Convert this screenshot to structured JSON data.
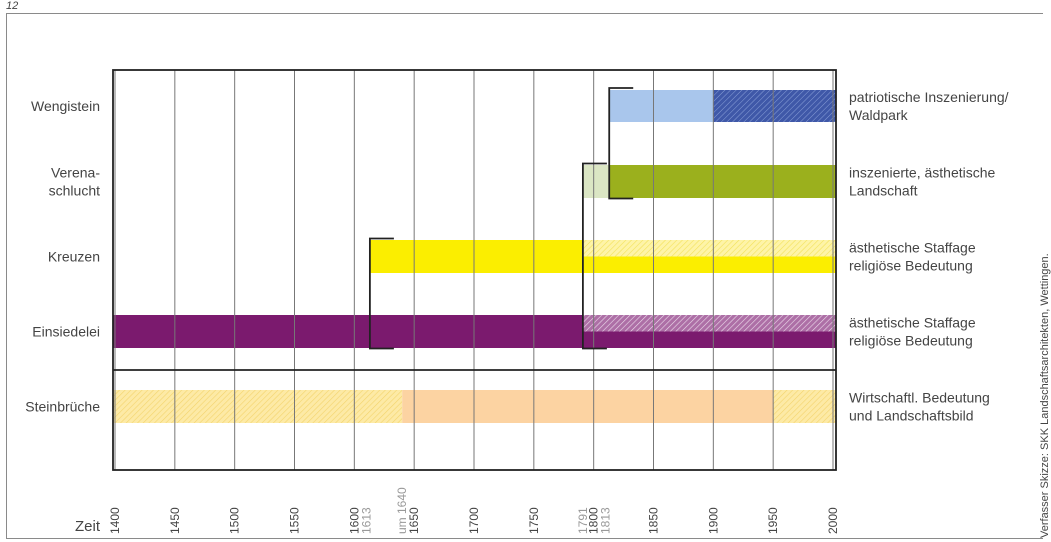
{
  "figure_number": "12",
  "credit": "Verfasser Skizze: SKK Landschaftsarchitekten, Wettingen.",
  "chart_data": {
    "type": "timeline",
    "xlabel": "Zeit",
    "xlim": [
      1400,
      2000
    ],
    "ticks": [
      1400,
      1450,
      1500,
      1550,
      1600,
      1650,
      1700,
      1750,
      1800,
      1850,
      1900,
      1950,
      2000
    ],
    "annotation_ticks": [
      {
        "label": "1613",
        "value": 1613
      },
      {
        "label": "um 1640",
        "value": 1640
      },
      {
        "label": "1791",
        "value": 1791
      },
      {
        "label": "1813",
        "value": 1813
      }
    ],
    "rows": [
      {
        "label": "Wengistein",
        "description": [
          "patriotische Inszenierung/",
          "Waldpark"
        ],
        "segments": [
          {
            "start": 1813,
            "end": 1900,
            "color": "#a9c6ec",
            "hatched": false
          },
          {
            "start": 1900,
            "end": 2010,
            "color": "#3f58a8",
            "hatched": true
          }
        ]
      },
      {
        "label": [
          "Verena-",
          "schlucht"
        ],
        "description": [
          "inszenierte, ästhetische",
          "Landschaft"
        ],
        "segments": [
          {
            "start": 1791,
            "end": 1813,
            "color": "#dbe6c4",
            "hatched": false
          },
          {
            "start": 1813,
            "end": 2010,
            "color": "#9bb01d",
            "hatched": false
          }
        ]
      },
      {
        "label": "Kreuzen",
        "description": [
          "ästhetische Staffage",
          "religiöse Bedeutung"
        ],
        "segments": [
          {
            "start": 1613,
            "end": 1791,
            "color": "#fbee00",
            "hatched": false
          },
          {
            "start": 1791,
            "end": 2010,
            "color": "#fbf070",
            "hatched": true,
            "split": true
          }
        ]
      },
      {
        "label": "Einsiedelei",
        "description": [
          "ästhetische Staffage",
          "religiöse Bedeutung"
        ],
        "segments": [
          {
            "start": 1300,
            "end": 1791,
            "color": "#7b1a6e",
            "hatched": false
          },
          {
            "start": 1791,
            "end": 2010,
            "color": "#8a3a85",
            "hatched": true,
            "split": true
          }
        ]
      },
      {
        "label": "Steinbrüche",
        "description": [
          "Wirtschaftl. Bedeutung",
          "und Landschaftsbild"
        ],
        "segments": [
          {
            "start": 1300,
            "end": 1640,
            "color": "#fde28a",
            "hatched": true
          },
          {
            "start": 1640,
            "end": 1950,
            "color": "#fcd3a2",
            "hatched": false
          },
          {
            "start": 1950,
            "end": 2010,
            "color": "#fde28a",
            "hatched": true
          }
        ]
      }
    ],
    "brackets": [
      {
        "start": 1813,
        "rows": [
          "Wengistein",
          "Verena-schlucht"
        ]
      },
      {
        "start": 1613,
        "rows": [
          "Kreuzen",
          "Einsiedelei"
        ]
      },
      {
        "start": 1791,
        "rows": [
          "Verena-schlucht",
          "Einsiedelei"
        ]
      }
    ]
  }
}
